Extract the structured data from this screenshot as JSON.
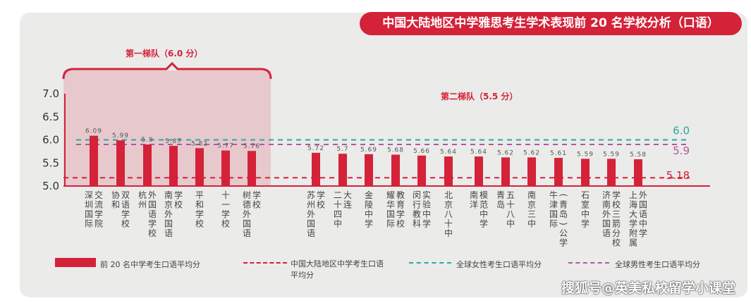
{
  "chart_data": {
    "type": "bar",
    "title": "中国大陆地区中学雅思考生学术表现前 20 名学校分析（口语）",
    "ylim": [
      5.0,
      7.0
    ],
    "yticks": [
      "5.0",
      "5.5",
      "6.0",
      "6.5",
      "7.0"
    ],
    "tiers": [
      {
        "label": "第一梯队（6.0 分）"
      },
      {
        "label": "第二梯队（5.5 分）"
      }
    ],
    "categories": [
      [
        "深圳国际",
        "交流学院"
      ],
      [
        "协和",
        "双语学校"
      ],
      [
        "杭州",
        "外国语学校"
      ],
      [
        "南京外国语",
        "学校"
      ],
      [
        "平和学校"
      ],
      [
        "十一学校"
      ],
      [
        "树德外国语",
        "学校"
      ],
      [
        "苏州外国语",
        "学校"
      ],
      [
        "二十四中",
        "大连"
      ],
      [
        "金陵中学"
      ],
      [
        "耀华国际",
        "教育学校"
      ],
      [
        "闵行教科",
        "实验中学"
      ],
      [
        "北京八十中"
      ],
      [
        "南洋",
        "模范中学"
      ],
      [
        "青岛",
        "五十八中"
      ],
      [
        "南京三中"
      ],
      [
        "牛津国际",
        "(青岛)公学"
      ],
      [
        "石室中学"
      ],
      [
        "济南外国语",
        "学校三箭分校"
      ],
      [
        "上海大学附属",
        "外国语中学"
      ]
    ],
    "values": [
      6.09,
      5.99,
      5.9,
      5.87,
      5.82,
      5.77,
      5.76,
      5.72,
      5.7,
      5.69,
      5.68,
      5.66,
      5.64,
      5.64,
      5.62,
      5.62,
      5.61,
      5.59,
      5.59,
      5.58
    ],
    "value_labels": [
      "6.09",
      "5.99",
      "5.9",
      "5.87",
      "5.82",
      "5.77",
      "5.76",
      "5.72",
      "5.7",
      "5.69",
      "5.68",
      "5.66",
      "5.64",
      "5.64",
      "5.62",
      "5.62",
      "5.61",
      "5.59",
      "5.59",
      "5.58"
    ],
    "reference_lines": [
      {
        "name": "全球女性考生口语平均分",
        "value": 6.0,
        "label": "6.0",
        "color": "#2aa9a0"
      },
      {
        "name": "全球男性考生口语平均分",
        "value": 5.9,
        "label": "5.9",
        "color": "#b5569b"
      },
      {
        "name": "中国大陆地区中学考生口语平均分",
        "value": 5.18,
        "label": "5.18",
        "color": "#d42239"
      }
    ],
    "legend": {
      "bars": "前 20 名中学考生口语平均分",
      "china": [
        "中国大陆地区中学考生口语",
        "平均分"
      ],
      "female": "全球女性考生口语平均分",
      "male": "全球男性考生口语平均分"
    },
    "bar_color": "#d42239"
  },
  "watermark": "搜狐号@英美私校留学小课堂"
}
